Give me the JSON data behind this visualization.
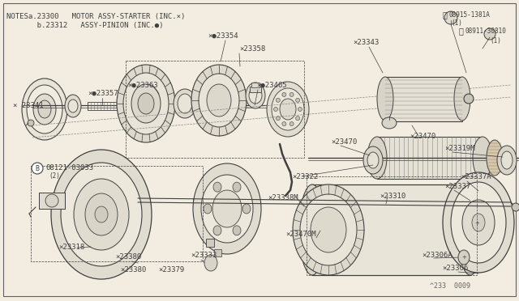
{
  "bg_color": "#f2ede0",
  "line_color": "#404040",
  "border_color": "#606060",
  "title_line1": "NOTESa.23300   MOTOR ASSY-STARTER (INC.×)",
  "title_line2": "       b.23312   ASSY-PINION (INC.●)",
  "diagram_id": "^233  0009",
  "figsize": [
    6.4,
    3.72
  ],
  "dpi": 100
}
